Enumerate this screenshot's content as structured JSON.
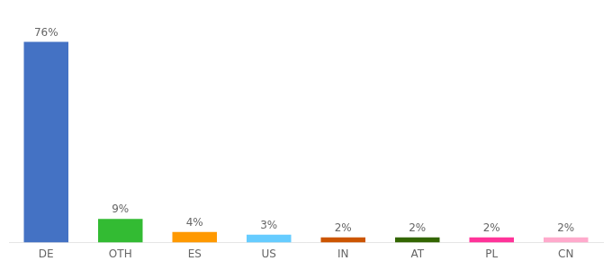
{
  "chart_data": {
    "type": "bar",
    "categories": [
      "DE",
      "OTH",
      "ES",
      "US",
      "IN",
      "AT",
      "PL",
      "CN"
    ],
    "values": [
      76,
      9,
      4,
      3,
      2,
      2,
      2,
      2
    ],
    "value_labels": [
      "76%",
      "9%",
      "4%",
      "3%",
      "2%",
      "2%",
      "2%",
      "2%"
    ],
    "data_labels": true,
    "colors": [
      "#4472C4",
      "#33BB33",
      "#FF9900",
      "#66CCFF",
      "#CC5500",
      "#336600",
      "#FF3399",
      "#FFAACC"
    ],
    "ylim": [
      0,
      85
    ],
    "grid": false,
    "tick_labels": "x"
  }
}
